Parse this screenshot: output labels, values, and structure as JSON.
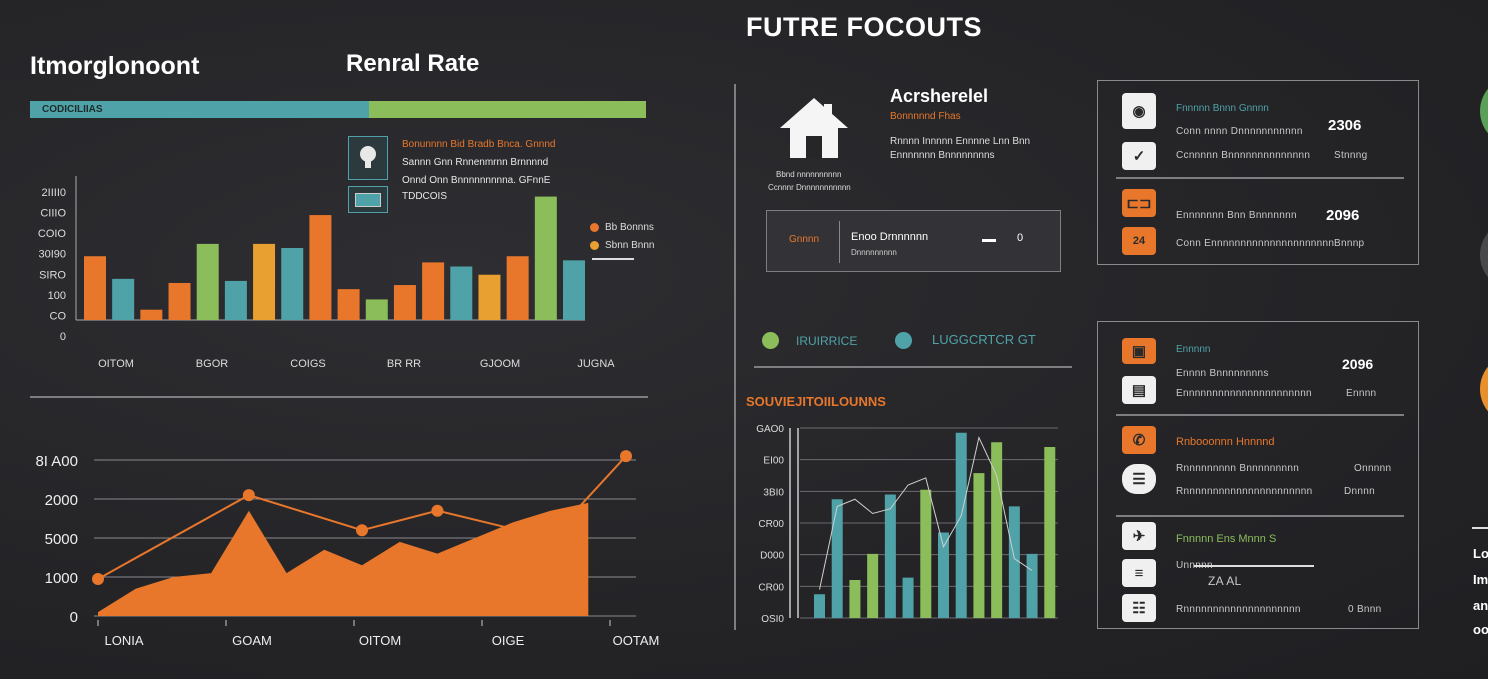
{
  "main_title": "FUTRE FOCOUTS",
  "left": {
    "title": "Itmorglonoont",
    "subtitle": "Renral Rate",
    "bar_label": "CODICILIIAS",
    "progress": 0.55,
    "info": {
      "lines": [
        "Bonunnnn Bid Bradb Bnca. Gnnnd",
        "Sannn Gnn Rnnenmrnn Brnnnnd",
        "Onnd Onn Bnnnnnnnnna. GFnnE",
        "TDDCOIS"
      ],
      "legend": [
        "Bb Bonnns",
        "Sbnn Bnnn"
      ]
    }
  },
  "right_top": {
    "header": "Acrsherelel",
    "header_sub": "Bonnnnnd Fhas",
    "header_lines": [
      "Rnnnn Innnnn Ennnne Lnn Bnn",
      "Ennnnnnn Bnnnnnnnns"
    ],
    "house_caption": [
      "Bbnd nnnnnnnnnn",
      "Ccnnnr Dnnnnnnnnnnn"
    ],
    "input_box": {
      "label": "Gnnnn",
      "title": "Enoo Drnnnnnn",
      "sub": "Dnnnnnnnnn",
      "value": "0"
    }
  },
  "stats_box_1": {
    "rows": [
      {
        "icon": "dial-icon",
        "label": "Fnnnnn Bnnn Gnnnn",
        "sub": "Conn nnnn Dnnnnnnnnnnn",
        "value": "2306"
      },
      {
        "icon": "check-icon",
        "label": "",
        "sub": "Ccnnnnn Bnnnnnnnnnnnnnn",
        "value": "Stnnng"
      },
      {
        "icon": "car-icon",
        "label": "Ennnnnnn Bnn Bnnnnnnn",
        "sub": "",
        "value": "2096"
      },
      {
        "icon": "badge-icon",
        "label": "",
        "sub": "Conn Ennnnnnnnnnnnnnnnnnnnn",
        "value": "Bnnnp"
      }
    ]
  },
  "legend_teal": {
    "a": "IRUIRRICE",
    "b": "LUGGCRTCR GT"
  },
  "mid_label": "SOUVIEJITOIILOUNNS",
  "stats_box_2": {
    "rows": [
      {
        "icon": "orange-box-icon",
        "label": "Ennnnn",
        "value": "2096",
        "sub": "Ennnn Bnnnnnnnns",
        "value2": "Ennnn"
      },
      {
        "icon": "film-icon",
        "label": "",
        "value": "",
        "sub": "Ennnnnnnnnnnnnnnnnnnnnn",
        "value2": "Ennnn"
      },
      {
        "icon": "phone-icon",
        "label": "Rnbooonnn Hnnnnd",
        "value": "",
        "sub": "Rnnnnnnnnn Bnnnnnnnnn",
        "value2": "Onnnnn"
      },
      {
        "icon": "chat-icon",
        "label": "",
        "value": "",
        "sub": "Rnnnnnnnnnnnnnnnnnnnnnn",
        "value2": "Dnnnn"
      },
      {
        "icon": "bird-icon",
        "label": "Fnnnnn Ens Mnnn S",
        "value": "",
        "sub": "Unnnnn",
        "value2": "ZA AL"
      },
      {
        "icon": "list-icon",
        "label": "",
        "value": "",
        "sub": "Rnnnnnnnnnnnnnnnnnnnn",
        "value2": "0 Bnnn"
      }
    ]
  },
  "side_text": [
    "Lo",
    "Im",
    "an",
    "oo"
  ],
  "colors": {
    "orange": "#e8772b",
    "teal": "#4fa3a8",
    "green": "#8bbd5a",
    "bg": "#262629"
  },
  "chart_data": [
    {
      "type": "bar",
      "ylabel": "",
      "ytick_labels": [
        "0",
        "CO",
        "100",
        "SIRO",
        "30I90",
        "COIO",
        "CIIIO",
        "2IIII0"
      ],
      "xtick_labels": [
        "OITOM",
        "BGOR",
        "COIGS",
        "BR RR",
        "GJOOM",
        "JUGNA"
      ],
      "ylim": [
        0,
        700
      ],
      "values": [
        310,
        200,
        50,
        180,
        370,
        190,
        370,
        350,
        510,
        150,
        100,
        170,
        280,
        260,
        220,
        310,
        600,
        290
      ],
      "colors": [
        "#e8772b",
        "#4fa3a8",
        "#e8772b",
        "#e8772b",
        "#8bbd5a",
        "#4fa3a8",
        "#e8a030",
        "#4fa3a8",
        "#e8772b",
        "#e8772b",
        "#8bbd5a",
        "#e8772b",
        "#e8772b",
        "#4fa3a8",
        "#e8a030",
        "#e8772b",
        "#8bbd5a",
        "#4fa3a8"
      ]
    },
    {
      "type": "area",
      "ytick_labels": [
        "0",
        "1000",
        "5000",
        "2000",
        "8I A00"
      ],
      "xtick_labels": [
        "LONIA",
        "GOAM",
        "OITOM",
        "OIGE",
        "OOTAM"
      ],
      "ylim": [
        0,
        4000
      ],
      "area_x": [
        0,
        1,
        2,
        3,
        4,
        5,
        6,
        7,
        8,
        9,
        10,
        11,
        12,
        13
      ],
      "area_values": [
        100,
        700,
        1000,
        1100,
        2700,
        1100,
        1700,
        1300,
        1900,
        1600,
        2000,
        2400,
        2700,
        2900
      ],
      "line_x": [
        0,
        4,
        7,
        9,
        12,
        14
      ],
      "line_values": [
        950,
        3100,
        2200,
        2700,
        2000,
        4100
      ]
    },
    {
      "type": "bar",
      "ytick_labels": [
        "OSI0",
        "CR00",
        "D000",
        "CR00",
        "3BI0",
        "EI00",
        "GAO0"
      ],
      "ylim": [
        0,
        800
      ],
      "values": [
        100,
        500,
        160,
        270,
        520,
        170,
        540,
        360,
        780,
        610,
        740,
        470,
        270,
        720
      ],
      "colors": [
        "#4fa3a8",
        "#4fa3a8",
        "#8bbd5a",
        "#8bbd5a",
        "#4fa3a8",
        "#4fa3a8",
        "#8bbd5a",
        "#4fa3a8",
        "#4fa3a8",
        "#8bbd5a",
        "#8bbd5a",
        "#4fa3a8",
        "#4fa3a8",
        "#8bbd5a"
      ],
      "trend_values": [
        120,
        470,
        500,
        440,
        460,
        560,
        590,
        300,
        430,
        760,
        600,
        250,
        200
      ]
    }
  ]
}
